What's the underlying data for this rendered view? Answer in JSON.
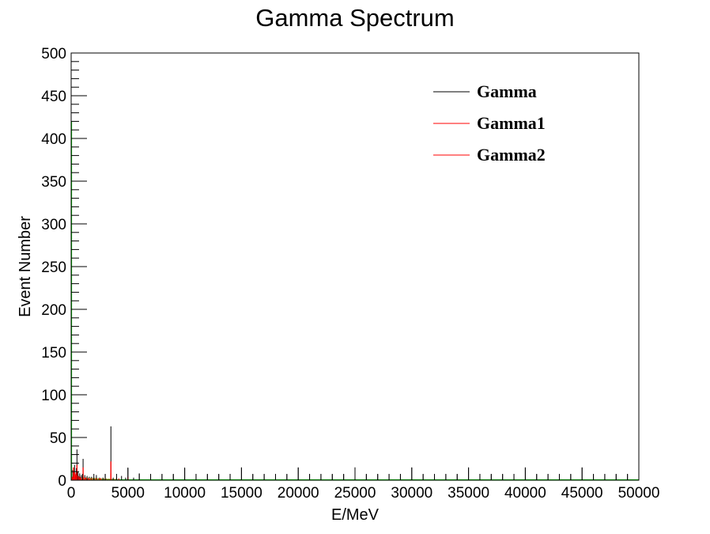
{
  "chart_data": {
    "type": "bar",
    "title": "Gamma Spectrum",
    "xlabel": "E/MeV",
    "ylabel": "Event Number",
    "xlim": [
      0,
      50000
    ],
    "ylim": [
      0,
      500
    ],
    "x_ticks": [
      "0",
      "5000",
      "10000",
      "15000",
      "20000",
      "25000",
      "30000",
      "35000",
      "40000",
      "45000",
      "50000"
    ],
    "y_ticks": [
      "0",
      "50",
      "100",
      "150",
      "200",
      "250",
      "300",
      "350",
      "400",
      "450",
      "500"
    ],
    "grid": false,
    "legend_position": "top-right",
    "series": [
      {
        "name": "Gamma",
        "color": "#000000",
        "points": [
          [
            150,
            12
          ],
          [
            300,
            18
          ],
          [
            450,
            14
          ],
          [
            511,
            36
          ],
          [
            600,
            10
          ],
          [
            750,
            8
          ],
          [
            900,
            6
          ],
          [
            1050,
            25
          ],
          [
            1200,
            6
          ],
          [
            1400,
            5
          ],
          [
            1600,
            4
          ],
          [
            1800,
            4
          ],
          [
            2000,
            3
          ],
          [
            2223,
            6
          ],
          [
            2500,
            3
          ],
          [
            2800,
            3
          ],
          [
            3000,
            7
          ],
          [
            3500,
            63
          ],
          [
            3700,
            3
          ],
          [
            4000,
            3
          ],
          [
            4438,
            5
          ],
          [
            4800,
            3
          ],
          [
            5000,
            14
          ],
          [
            5500,
            3
          ],
          [
            6000,
            8
          ],
          [
            7000,
            7
          ],
          [
            8000,
            7
          ],
          [
            9000,
            7
          ],
          [
            10000,
            14
          ],
          [
            11000,
            7
          ],
          [
            12000,
            7
          ],
          [
            13000,
            7
          ],
          [
            14000,
            7
          ],
          [
            15000,
            15
          ],
          [
            16000,
            7
          ],
          [
            17000,
            7
          ],
          [
            18000,
            7
          ],
          [
            19000,
            7
          ],
          [
            20000,
            15
          ],
          [
            21000,
            7
          ],
          [
            22000,
            7
          ],
          [
            23000,
            7
          ],
          [
            24000,
            7
          ],
          [
            25000,
            15
          ],
          [
            26000,
            7
          ],
          [
            27000,
            7
          ],
          [
            28000,
            7
          ],
          [
            29000,
            7
          ],
          [
            30000,
            15
          ],
          [
            31000,
            7
          ],
          [
            32000,
            7
          ],
          [
            33000,
            7
          ],
          [
            34000,
            7
          ],
          [
            35000,
            15
          ],
          [
            36000,
            7
          ],
          [
            37000,
            7
          ],
          [
            38000,
            7
          ],
          [
            39000,
            7
          ],
          [
            40000,
            15
          ],
          [
            41000,
            7
          ],
          [
            42000,
            7
          ],
          [
            43000,
            7
          ],
          [
            44000,
            7
          ],
          [
            45000,
            15
          ],
          [
            46000,
            7
          ],
          [
            47000,
            7
          ],
          [
            48000,
            7
          ],
          [
            49000,
            7
          ]
        ]
      },
      {
        "name": "Gamma1",
        "color": "#ff0000",
        "points": [
          [
            100,
            4
          ],
          [
            200,
            15
          ],
          [
            300,
            10
          ],
          [
            400,
            6
          ],
          [
            511,
            18
          ],
          [
            650,
            5
          ],
          [
            800,
            4
          ],
          [
            1050,
            15
          ],
          [
            1300,
            3
          ],
          [
            1600,
            2
          ],
          [
            2000,
            2
          ],
          [
            2500,
            2
          ],
          [
            3000,
            2
          ],
          [
            3500,
            22
          ],
          [
            4000,
            2
          ],
          [
            5000,
            4
          ]
        ]
      },
      {
        "name": "Gamma2",
        "color": "#ff0000",
        "points": [
          [
            150,
            3
          ],
          [
            350,
            8
          ],
          [
            511,
            10
          ],
          [
            700,
            3
          ],
          [
            900,
            2
          ],
          [
            1200,
            3
          ],
          [
            1500,
            2
          ],
          [
            1800,
            2
          ],
          [
            2200,
            2
          ],
          [
            2600,
            2
          ],
          [
            3500,
            8
          ],
          [
            4200,
            2
          ]
        ]
      }
    ],
    "extra_lines": {
      "olive_color": "#8b8b00",
      "green_color": "#00cc00"
    }
  }
}
